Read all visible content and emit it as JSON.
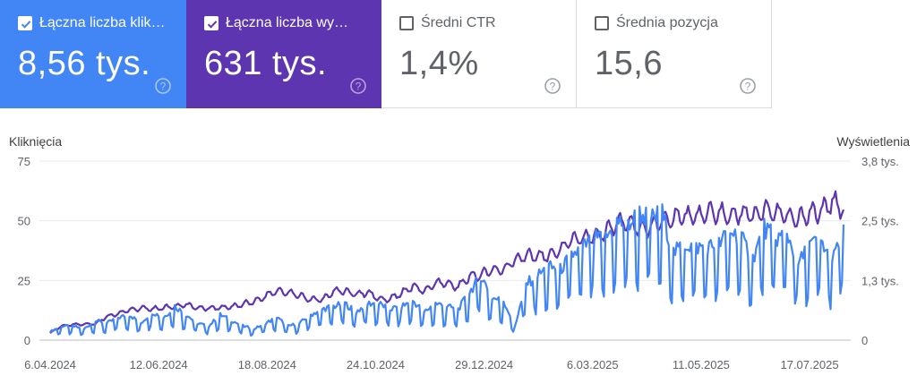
{
  "cards": {
    "clicks": {
      "label": "Łączna liczba klik…",
      "value": "8,56 tys.",
      "checked": true,
      "color": "#4285f4"
    },
    "impressions": {
      "label": "Łączna liczba wy…",
      "value": "631 tys.",
      "checked": true,
      "color": "#5e35b1"
    },
    "ctr": {
      "label": "Średni CTR",
      "value": "1,4%",
      "checked": false
    },
    "position": {
      "label": "Średnia pozycja",
      "value": "15,6",
      "checked": false
    }
  },
  "chart_data": {
    "type": "line",
    "ylabel_left": "Kliknięcia",
    "ylabel_right": "Wyświetlenia",
    "left_ticks": [
      "75",
      "50",
      "25",
      "0"
    ],
    "right_ticks": [
      "3,8 tys.",
      "2,5 tys.",
      "1,3 tys.",
      "0"
    ],
    "ylim_left": [
      0,
      75
    ],
    "ylim_right": [
      0,
      3800
    ],
    "grid": true,
    "x_labels": [
      "6.04.2024",
      "12.06.2024",
      "18.08.2024",
      "24.10.2024",
      "29.12.2024",
      "6.03.2025",
      "11.05.2025",
      "17.07.2025"
    ],
    "x_label_step_days": 67,
    "series": [
      {
        "name": "Kliknięcia",
        "axis": "left",
        "color": "#4285f4",
        "weekly_values": [
          3,
          5,
          5,
          4,
          7,
          6,
          8,
          9,
          6,
          10,
          8,
          12,
          9,
          6,
          5,
          9,
          7,
          5,
          4,
          6,
          8,
          5,
          6,
          9,
          11,
          12,
          13,
          10,
          13,
          13,
          11,
          12,
          14,
          10,
          13,
          12,
          11,
          17,
          23,
          15,
          14,
          5,
          20,
          23,
          26,
          25,
          30,
          33,
          36,
          36,
          42,
          41,
          45,
          43,
          45,
          31,
          34,
          33,
          33,
          34,
          39,
          36,
          29,
          40,
          36,
          38,
          27,
          34,
          35,
          28,
          39
        ]
      },
      {
        "name": "Wyświetlenia",
        "axis": "right",
        "color": "#5e35b1",
        "weekly_values": [
          150,
          300,
          330,
          340,
          350,
          500,
          560,
          640,
          680,
          660,
          690,
          710,
          750,
          690,
          680,
          690,
          700,
          770,
          820,
          930,
          1050,
          1000,
          950,
          860,
          850,
          1040,
          1040,
          970,
          1020,
          880,
          870,
          1000,
          1150,
          1040,
          1200,
          1200,
          1140,
          1340,
          1400,
          1470,
          1500,
          1700,
          1790,
          1790,
          1780,
          1900,
          2120,
          2180,
          2200,
          2300,
          2480,
          2520,
          2380,
          2380,
          2590,
          2590,
          2610,
          2620,
          2700,
          2710,
          2650,
          2720,
          2640,
          2800,
          2720,
          2600,
          2570,
          2690,
          2720,
          2950,
          2780
        ]
      }
    ]
  }
}
